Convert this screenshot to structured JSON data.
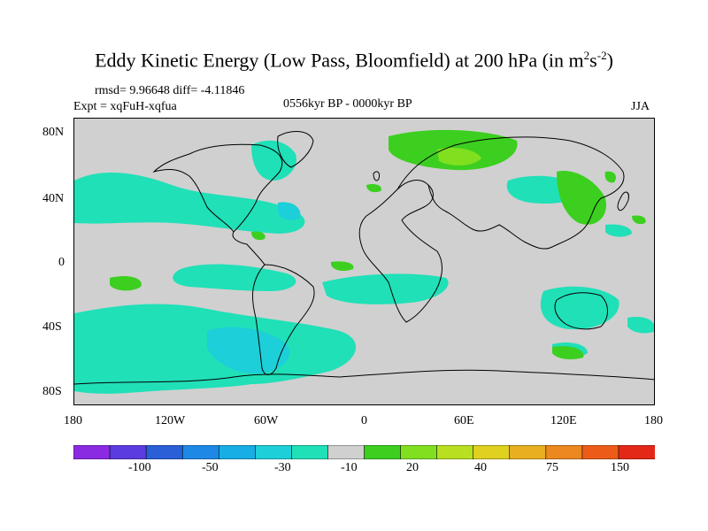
{
  "header": {
    "title_main": "Eddy Kinetic Energy (Low Pass, Bloomfield) at 200 hPa (in m",
    "title_sup1": "2",
    "title_s": "s",
    "title_sup2": "-2",
    "title_close": ")",
    "stats": "rmsd= 9.96648  diff= -4.11846",
    "expt": "Expt = xqFuH-xqfua",
    "period": "0556kyr BP - 0000kyr BP",
    "season": "JJA"
  },
  "axes": {
    "y_labels": [
      "80N",
      "40N",
      "0",
      "40S",
      "80S"
    ],
    "x_labels": [
      "180",
      "120W",
      "60W",
      "0",
      "60E",
      "120E",
      "180"
    ]
  },
  "colors": {
    "land_background": "#d0d0d0",
    "coast": "#000000",
    "bins": [
      "#8a2be2",
      "#5a3ce0",
      "#2a5fd8",
      "#1e88e6",
      "#17aee6",
      "#1ccfd8",
      "#20e0b8",
      "#d0d0d0",
      "#3ccf20",
      "#80e020",
      "#b8e020",
      "#e0d020",
      "#e8b020",
      "#ec8820",
      "#ec5c18",
      "#e42818"
    ]
  },
  "colorbar": {
    "labels": [
      "-100",
      "-50",
      "-30",
      "-10",
      "20",
      "40",
      "75",
      "150"
    ]
  }
}
